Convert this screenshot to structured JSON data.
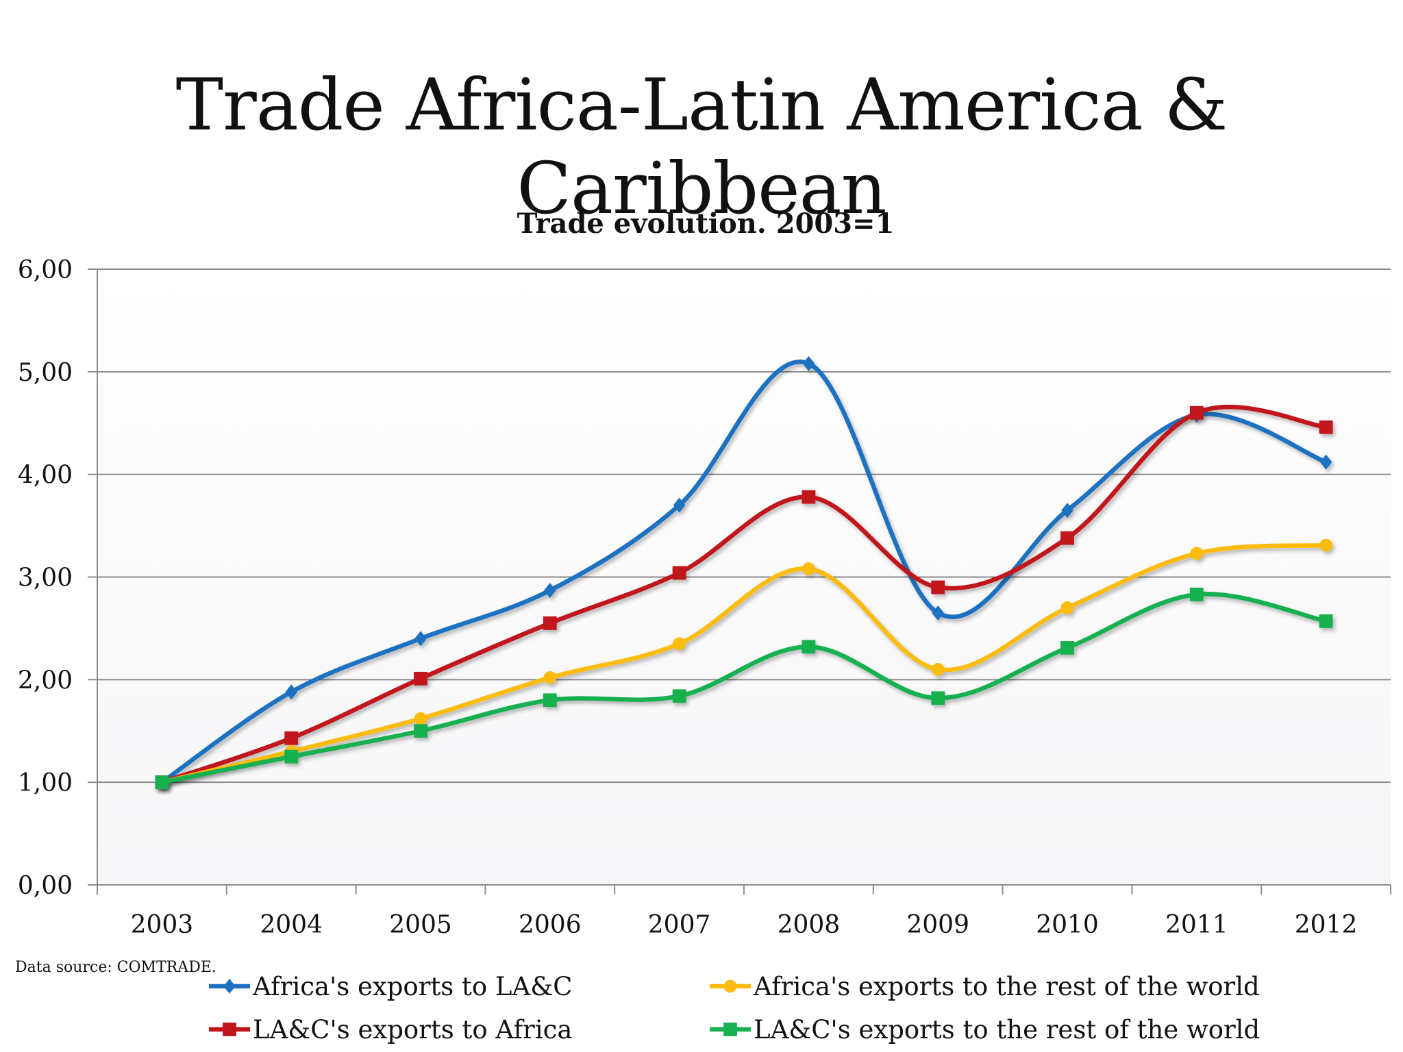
{
  "slide": {
    "title": "Trade Africa-Latin America & Caribbean",
    "source": "Data source: COMTRADE."
  },
  "chart_data": {
    "type": "line",
    "title": "Trade evolution. 2003=1",
    "xlabel": "",
    "ylabel": "",
    "x": [
      "2003",
      "2004",
      "2005",
      "2006",
      "2007",
      "2008",
      "2009",
      "2010",
      "2011",
      "2012"
    ],
    "ylim": [
      0,
      6
    ],
    "yticks": [
      "0,00",
      "1,00",
      "2,00",
      "3,00",
      "4,00",
      "5,00",
      "6,00"
    ],
    "grid": true,
    "smooth": true,
    "legend_position": "bottom",
    "series": [
      {
        "name": "Africa's exports to LA&C",
        "color": "#1f72c0",
        "marker": "diamond",
        "values": [
          1.0,
          1.88,
          2.4,
          2.87,
          3.7,
          5.08,
          2.65,
          3.65,
          4.58,
          4.12
        ]
      },
      {
        "name": "Africa's exports to the rest of the world",
        "color": "#fbbc0e",
        "marker": "circle",
        "values": [
          1.0,
          1.3,
          1.62,
          2.02,
          2.35,
          3.08,
          2.1,
          2.7,
          3.23,
          3.31
        ]
      },
      {
        "name": "LA&C's exports to Africa",
        "color": "#c0161c",
        "marker": "square",
        "values": [
          1.0,
          1.43,
          2.01,
          2.55,
          3.04,
          3.78,
          2.9,
          3.38,
          4.6,
          4.46
        ]
      },
      {
        "name": "LA&C's exports to the rest of the world",
        "color": "#18b050",
        "marker": "square",
        "values": [
          1.0,
          1.25,
          1.5,
          1.8,
          1.84,
          2.32,
          1.82,
          2.31,
          2.83,
          2.57
        ]
      }
    ]
  }
}
